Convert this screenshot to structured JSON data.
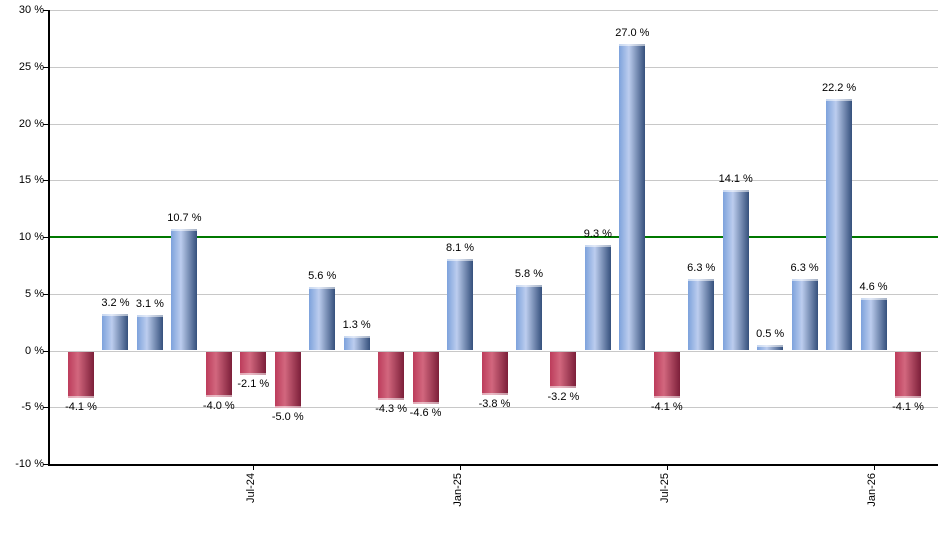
{
  "chart_data": {
    "type": "bar",
    "title": "",
    "xlabel": "",
    "ylabel": "",
    "ylim": [
      -10,
      30
    ],
    "grid": true,
    "legend": "none",
    "y_ticks": [
      {
        "value": 30,
        "label": "30 %"
      },
      {
        "value": 25,
        "label": "25 %"
      },
      {
        "value": 20,
        "label": "20 %"
      },
      {
        "value": 15,
        "label": "15 %"
      },
      {
        "value": 10,
        "label": "10 %"
      },
      {
        "value": 5,
        "label": "5 %"
      },
      {
        "value": 0,
        "label": "0 %"
      },
      {
        "value": -5,
        "label": "-5 %"
      },
      {
        "value": -10,
        "label": "-10 %"
      }
    ],
    "reference_line": {
      "value": 10,
      "color": "#007800"
    },
    "values": [
      -4.1,
      3.2,
      3.1,
      10.7,
      -4.0,
      -2.1,
      -5.0,
      5.6,
      1.3,
      -4.3,
      -4.6,
      8.1,
      -3.8,
      5.8,
      -3.2,
      9.3,
      27.0,
      -4.1,
      6.3,
      14.1,
      0.5,
      6.3,
      22.2,
      4.6,
      -4.1
    ],
    "bar_labels": [
      "-4.1 %",
      "3.2 %",
      "3.1 %",
      "10.7 %",
      "-4.0 %",
      "-2.1 %",
      "-5.0 %",
      "5.6 %",
      "1.3 %",
      "-4.3 %",
      "-4.6 %",
      "8.1 %",
      "-3.8 %",
      "5.8 %",
      "-3.2 %",
      "9.3 %",
      "27.0 %",
      "-4.1 %",
      "6.3 %",
      "14.1 %",
      "0.5 %",
      "6.3 %",
      "22.2 %",
      "4.6 %",
      "-4.1 %"
    ],
    "x_ticks": [
      {
        "label": "Jul-24",
        "bar_index": 5
      },
      {
        "label": "Jan-25",
        "bar_index": 11
      },
      {
        "label": "Jul-25",
        "bar_index": 17
      },
      {
        "label": "Jan-26",
        "bar_index": 23
      }
    ],
    "colors": {
      "positive_bar_gradient": [
        "#7da2dc",
        "#bccdee",
        "#35507c"
      ],
      "negative_bar_gradient": [
        "#bc3c5b",
        "#d2677e",
        "#7c1f39"
      ],
      "gridline": "#c8c8c8",
      "axis": "#000000",
      "reference_line": "#007800",
      "background": "#ffffff",
      "label_text": "#000000"
    }
  }
}
